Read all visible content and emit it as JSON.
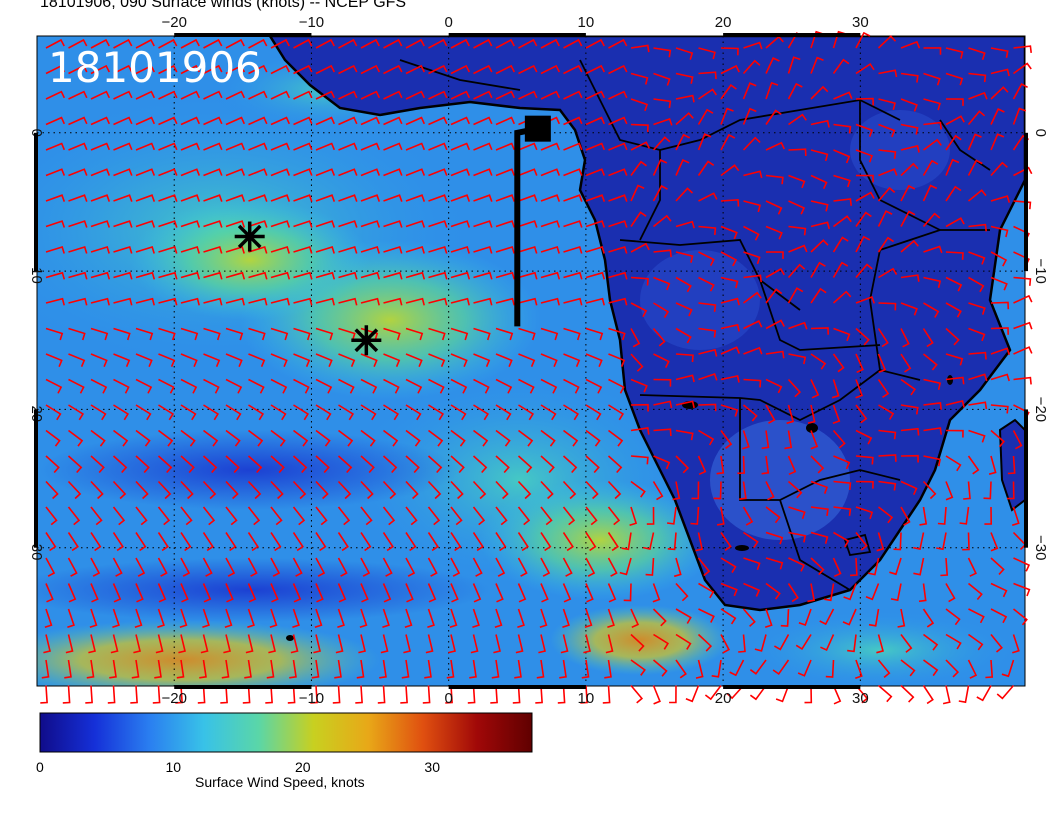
{
  "title": "18101906, 090 Surface winds (knots) -- NCEP GFS",
  "date_stamp": "18101906",
  "map": {
    "lon_range": [
      -30,
      42
    ],
    "lat_range": [
      -40,
      7
    ],
    "lon_ticks": [
      {
        "value": -20,
        "label": "−20"
      },
      {
        "value": -10,
        "label": "−10"
      },
      {
        "value": 0,
        "label": "0"
      },
      {
        "value": 10,
        "label": "10"
      },
      {
        "value": 20,
        "label": "20"
      },
      {
        "value": 30,
        "label": "30"
      }
    ],
    "lat_ticks": [
      {
        "value": 0,
        "label": "0"
      },
      {
        "value": -10,
        "label": "−10"
      },
      {
        "value": -20,
        "label": "−20"
      },
      {
        "value": -30,
        "label": "−30"
      }
    ],
    "markers": [
      {
        "name": "asterisk",
        "lon": -14.5,
        "lat": -7.5
      },
      {
        "name": "asterisk",
        "lon": -6,
        "lat": -15
      },
      {
        "name": "square",
        "lon": 6.5,
        "lat": 0.3
      }
    ],
    "flight_track": [
      [
        6.5,
        0.3
      ],
      [
        5,
        0.0
      ],
      [
        5,
        -14
      ]
    ],
    "colors": {
      "barb": "#ff0000",
      "land": "#1a2fb0",
      "coast": "#000000",
      "grid": "#000000"
    }
  },
  "colorbar": {
    "label": "Surface Wind Speed, knots",
    "range": [
      0,
      38
    ],
    "ticks": [
      {
        "value": 0,
        "label": "0"
      },
      {
        "value": 10,
        "label": "10"
      },
      {
        "value": 20,
        "label": "20"
      },
      {
        "value": 30,
        "label": "30"
      }
    ],
    "colors": [
      "#100c8a",
      "#1530d8",
      "#2a7ef0",
      "#38c2e8",
      "#5ad6a8",
      "#c8d020",
      "#e8a818",
      "#e05010",
      "#a00808",
      "#600000"
    ]
  }
}
